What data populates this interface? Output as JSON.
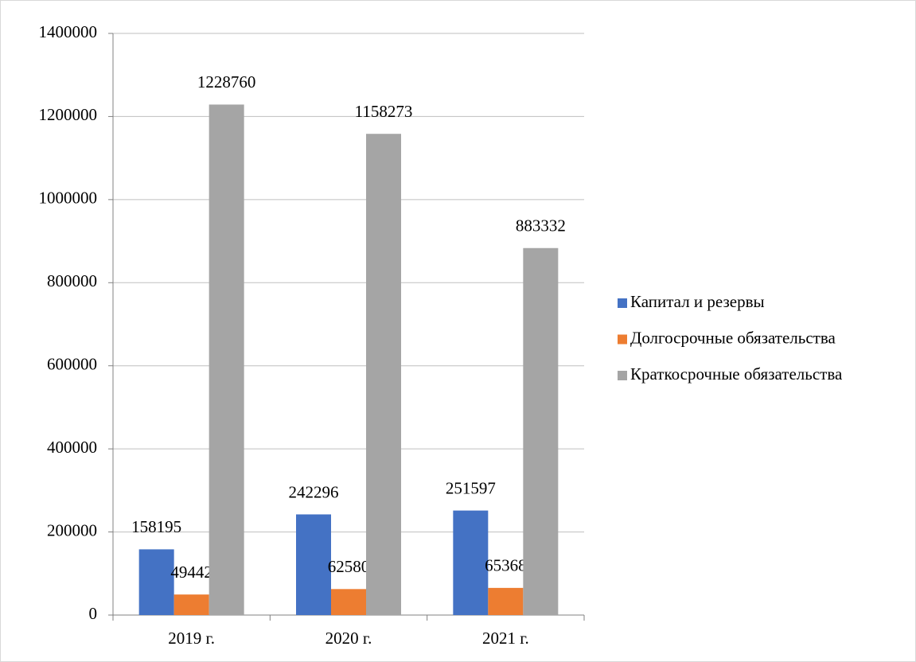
{
  "chart_data": {
    "type": "bar",
    "categories": [
      "2019 г.",
      "2020 г.",
      "2021 г."
    ],
    "series": [
      {
        "name": "Капитал и резервы",
        "color": "#4472c4",
        "values": [
          158195,
          242296,
          251597
        ]
      },
      {
        "name": "Долгосрочные обязательства",
        "color": "#ed7d31",
        "values": [
          49442,
          62580,
          65368
        ]
      },
      {
        "name": "Краткосрочные обязательства",
        "color": "#a5a5a5",
        "values": [
          1228760,
          1158273,
          883332
        ]
      }
    ],
    "ylim": [
      0,
      1400000
    ],
    "yticks": [
      0,
      200000,
      400000,
      600000,
      800000,
      1000000,
      1200000,
      1400000
    ],
    "grid": true,
    "legend": "right",
    "data_labels": true
  }
}
